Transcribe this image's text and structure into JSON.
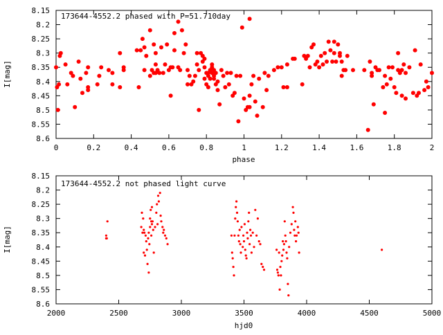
{
  "chart_data": [
    {
      "type": "scatter",
      "title": "173644-4552.2 phased with P=51.710day",
      "xlabel": "phase",
      "ylabel": "I[mag]",
      "xlim": [
        0,
        2
      ],
      "ylim": [
        8.6,
        8.15
      ],
      "y_inverted": true,
      "marker_color": "#ff0000",
      "marker": "filled-circle-large",
      "x_ticks": [
        "0",
        "0.2",
        "0.4",
        "0.6",
        "0.8",
        "1",
        "1.2",
        "1.4",
        "1.6",
        "1.8",
        "2"
      ],
      "y_ticks": [
        "8.15",
        "8.2",
        "8.25",
        "8.3",
        "8.35",
        "8.4",
        "8.45",
        "8.5",
        "8.55",
        "8.6"
      ],
      "x_tick_values": [
        0,
        0.2,
        0.4,
        0.6,
        0.8,
        1,
        1.2,
        1.4,
        1.6,
        1.8,
        2
      ],
      "y_tick_values": [
        8.15,
        8.2,
        8.25,
        8.3,
        8.35,
        8.4,
        8.45,
        8.5,
        8.55,
        8.6
      ],
      "points": [
        [
          0.0,
          8.35
        ],
        [
          0.005,
          8.42
        ],
        [
          0.01,
          8.5
        ],
        [
          0.015,
          8.41
        ],
        [
          0.02,
          8.31
        ],
        [
          0.025,
          8.3
        ],
        [
          0.05,
          8.34
        ],
        [
          0.06,
          8.41
        ],
        [
          0.08,
          8.37
        ],
        [
          0.09,
          8.38
        ],
        [
          0.1,
          8.49
        ],
        [
          0.12,
          8.33
        ],
        [
          0.13,
          8.39
        ],
        [
          0.14,
          8.44
        ],
        [
          0.16,
          8.37
        ],
        [
          0.17,
          8.42
        ],
        [
          0.17,
          8.43
        ],
        [
          0.17,
          8.35
        ],
        [
          0.22,
          8.41
        ],
        [
          0.23,
          8.38
        ],
        [
          0.24,
          8.35
        ],
        [
          0.28,
          8.36
        ],
        [
          0.3,
          8.37
        ],
        [
          0.3,
          8.41
        ],
        [
          0.34,
          8.42
        ],
        [
          0.34,
          8.3
        ],
        [
          0.36,
          8.36
        ],
        [
          0.36,
          8.35
        ],
        [
          0.43,
          8.29
        ],
        [
          0.44,
          8.42
        ],
        [
          0.45,
          8.29
        ],
        [
          0.46,
          8.25
        ],
        [
          0.47,
          8.28
        ],
        [
          0.47,
          8.36
        ],
        [
          0.48,
          8.31
        ],
        [
          0.5,
          8.22
        ],
        [
          0.5,
          8.38
        ],
        [
          0.51,
          8.36
        ],
        [
          0.52,
          8.37
        ],
        [
          0.52,
          8.27
        ],
        [
          0.53,
          8.3
        ],
        [
          0.53,
          8.37
        ],
        [
          0.53,
          8.34
        ],
        [
          0.54,
          8.36
        ],
        [
          0.55,
          8.37
        ],
        [
          0.56,
          8.28
        ],
        [
          0.57,
          8.37
        ],
        [
          0.58,
          8.34
        ],
        [
          0.59,
          8.27
        ],
        [
          0.6,
          8.36
        ],
        [
          0.61,
          8.35
        ],
        [
          0.61,
          8.45
        ],
        [
          0.62,
          8.35
        ],
        [
          0.63,
          8.23
        ],
        [
          0.63,
          8.29
        ],
        [
          0.65,
          8.35
        ],
        [
          0.65,
          8.19
        ],
        [
          0.66,
          8.36
        ],
        [
          0.67,
          8.22
        ],
        [
          0.68,
          8.3
        ],
        [
          0.69,
          8.27
        ],
        [
          0.7,
          8.41
        ],
        [
          0.7,
          8.36
        ],
        [
          0.71,
          8.38
        ],
        [
          0.72,
          8.41
        ],
        [
          0.73,
          8.4
        ],
        [
          0.74,
          8.38
        ],
        [
          0.75,
          8.3
        ],
        [
          0.75,
          8.34
        ],
        [
          0.76,
          8.36
        ],
        [
          0.76,
          8.5
        ],
        [
          0.77,
          8.3
        ],
        [
          0.78,
          8.31
        ],
        [
          0.78,
          8.33
        ],
        [
          0.79,
          8.32
        ],
        [
          0.79,
          8.35
        ],
        [
          0.79,
          8.39
        ],
        [
          0.8,
          8.37
        ],
        [
          0.8,
          8.41
        ],
        [
          0.81,
          8.38
        ],
        [
          0.81,
          8.42
        ],
        [
          0.81,
          8.37
        ],
        [
          0.82,
          8.36
        ],
        [
          0.82,
          8.39
        ],
        [
          0.83,
          8.35
        ],
        [
          0.83,
          8.37
        ],
        [
          0.83,
          8.34
        ],
        [
          0.84,
          8.38
        ],
        [
          0.84,
          8.36
        ],
        [
          0.84,
          8.39
        ],
        [
          0.85,
          8.37
        ],
        [
          0.85,
          8.41
        ],
        [
          0.86,
          8.4
        ],
        [
          0.86,
          8.43
        ],
        [
          0.87,
          8.48
        ],
        [
          0.88,
          8.36
        ],
        [
          0.89,
          8.38
        ],
        [
          0.9,
          8.42
        ],
        [
          0.91,
          8.37
        ],
        [
          0.92,
          8.41
        ],
        [
          0.93,
          8.37
        ],
        [
          0.94,
          8.45
        ],
        [
          0.95,
          8.44
        ],
        [
          0.96,
          8.38
        ],
        [
          0.97,
          8.54
        ],
        [
          0.98,
          8.38
        ],
        [
          0.99,
          8.21
        ],
        [
          1.0,
          8.46
        ],
        [
          1.01,
          8.5
        ],
        [
          1.02,
          8.49
        ],
        [
          1.03,
          8.18
        ],
        [
          1.03,
          8.45
        ],
        [
          1.03,
          8.49
        ],
        [
          1.04,
          8.41
        ],
        [
          1.05,
          8.38
        ],
        [
          1.06,
          8.47
        ],
        [
          1.07,
          8.52
        ],
        [
          1.08,
          8.39
        ],
        [
          1.1,
          8.49
        ],
        [
          1.11,
          8.37
        ],
        [
          1.12,
          8.43
        ],
        [
          1.13,
          8.38
        ],
        [
          1.16,
          8.36
        ],
        [
          1.18,
          8.35
        ],
        [
          1.2,
          8.35
        ],
        [
          1.21,
          8.42
        ],
        [
          1.23,
          8.42
        ],
        [
          1.23,
          8.34
        ],
        [
          1.26,
          8.32
        ],
        [
          1.27,
          8.32
        ],
        [
          1.31,
          8.41
        ],
        [
          1.32,
          8.31
        ],
        [
          1.33,
          8.32
        ],
        [
          1.34,
          8.31
        ],
        [
          1.35,
          8.35
        ],
        [
          1.36,
          8.28
        ],
        [
          1.37,
          8.27
        ],
        [
          1.38,
          8.34
        ],
        [
          1.39,
          8.33
        ],
        [
          1.4,
          8.35
        ],
        [
          1.41,
          8.31
        ],
        [
          1.42,
          8.34
        ],
        [
          1.43,
          8.3
        ],
        [
          1.44,
          8.33
        ],
        [
          1.45,
          8.26
        ],
        [
          1.46,
          8.29
        ],
        [
          1.47,
          8.33
        ],
        [
          1.48,
          8.3
        ],
        [
          1.48,
          8.26
        ],
        [
          1.49,
          8.33
        ],
        [
          1.5,
          8.27
        ],
        [
          1.51,
          8.31
        ],
        [
          1.51,
          8.3
        ],
        [
          1.52,
          8.33
        ],
        [
          1.52,
          8.38
        ],
        [
          1.53,
          8.36
        ],
        [
          1.54,
          8.36
        ],
        [
          1.55,
          8.31
        ],
        [
          1.58,
          8.36
        ],
        [
          1.64,
          8.36
        ],
        [
          1.66,
          8.57
        ],
        [
          1.67,
          8.33
        ],
        [
          1.68,
          8.37
        ],
        [
          1.68,
          8.38
        ],
        [
          1.69,
          8.48
        ],
        [
          1.7,
          8.35
        ],
        [
          1.71,
          8.36
        ],
        [
          1.72,
          8.36
        ],
        [
          1.74,
          8.42
        ],
        [
          1.75,
          8.51
        ],
        [
          1.75,
          8.38
        ],
        [
          1.76,
          8.41
        ],
        [
          1.77,
          8.35
        ],
        [
          1.78,
          8.39
        ],
        [
          1.79,
          8.35
        ],
        [
          1.8,
          8.42
        ],
        [
          1.81,
          8.44
        ],
        [
          1.82,
          8.3
        ],
        [
          1.82,
          8.36
        ],
        [
          1.83,
          8.37
        ],
        [
          1.84,
          8.45
        ],
        [
          1.84,
          8.36
        ],
        [
          1.85,
          8.34
        ],
        [
          1.86,
          8.37
        ],
        [
          1.86,
          8.46
        ],
        [
          1.88,
          8.35
        ],
        [
          1.9,
          8.44
        ],
        [
          1.91,
          8.29
        ],
        [
          1.92,
          8.45
        ],
        [
          1.93,
          8.44
        ],
        [
          1.94,
          8.34
        ],
        [
          1.96,
          8.43
        ],
        [
          1.97,
          8.4
        ],
        [
          1.98,
          8.42
        ],
        [
          2.0,
          8.37
        ]
      ]
    },
    {
      "type": "scatter",
      "title": "173644-4552.2 not phased light curve",
      "xlabel": "hjd0",
      "ylabel": "I[mag]",
      "xlim": [
        2000,
        5000
      ],
      "ylim": [
        8.6,
        8.15
      ],
      "y_inverted": true,
      "marker_color": "#ff0000",
      "marker": "dot-small",
      "x_ticks": [
        "2000",
        "2500",
        "3000",
        "3500",
        "4000",
        "4500",
        "5000"
      ],
      "y_ticks": [
        "8.15",
        "8.2",
        "8.25",
        "8.3",
        "8.35",
        "8.4",
        "8.45",
        "8.5",
        "8.55",
        "8.6"
      ],
      "x_tick_values": [
        2000,
        2500,
        3000,
        3500,
        4000,
        4500,
        5000
      ],
      "y_tick_values": [
        8.15,
        8.2,
        8.25,
        8.3,
        8.35,
        8.4,
        8.45,
        8.5,
        8.55,
        8.6
      ],
      "points": [
        [
          2400,
          8.37
        ],
        [
          2400,
          8.36
        ],
        [
          2405,
          8.37
        ],
        [
          2410,
          8.31
        ],
        [
          2680,
          8.33
        ],
        [
          2685,
          8.28
        ],
        [
          2690,
          8.35
        ],
        [
          2695,
          8.3
        ],
        [
          2700,
          8.34
        ],
        [
          2700,
          8.42
        ],
        [
          2705,
          8.35
        ],
        [
          2710,
          8.43
        ],
        [
          2715,
          8.36
        ],
        [
          2720,
          8.38
        ],
        [
          2725,
          8.41
        ],
        [
          2730,
          8.46
        ],
        [
          2735,
          8.37
        ],
        [
          2740,
          8.35
        ],
        [
          2740,
          8.49
        ],
        [
          2745,
          8.39
        ],
        [
          2750,
          8.3
        ],
        [
          2750,
          8.33
        ],
        [
          2755,
          8.27
        ],
        [
          2760,
          8.31
        ],
        [
          2760,
          8.36
        ],
        [
          2765,
          8.32
        ],
        [
          2765,
          8.26
        ],
        [
          2770,
          8.31
        ],
        [
          2775,
          8.34
        ],
        [
          2780,
          8.42
        ],
        [
          2790,
          8.33
        ],
        [
          2800,
          8.28
        ],
        [
          2805,
          8.25
        ],
        [
          2810,
          8.32
        ],
        [
          2815,
          8.22
        ],
        [
          2820,
          8.24
        ],
        [
          2830,
          8.21
        ],
        [
          2835,
          8.29
        ],
        [
          2840,
          8.31
        ],
        [
          2850,
          8.33
        ],
        [
          2855,
          8.35
        ],
        [
          2860,
          8.34
        ],
        [
          2870,
          8.36
        ],
        [
          2880,
          8.37
        ],
        [
          2890,
          8.39
        ],
        [
          3400,
          8.36
        ],
        [
          3405,
          8.42
        ],
        [
          3410,
          8.44
        ],
        [
          3415,
          8.47
        ],
        [
          3420,
          8.5
        ],
        [
          3425,
          8.36
        ],
        [
          3430,
          8.3
        ],
        [
          3435,
          8.26
        ],
        [
          3440,
          8.24
        ],
        [
          3445,
          8.28
        ],
        [
          3450,
          8.31
        ],
        [
          3455,
          8.36
        ],
        [
          3460,
          8.38
        ],
        [
          3465,
          8.34
        ],
        [
          3470,
          8.39
        ],
        [
          3475,
          8.42
        ],
        [
          3480,
          8.33
        ],
        [
          3490,
          8.4
        ],
        [
          3495,
          8.36
        ],
        [
          3500,
          8.38
        ],
        [
          3505,
          8.32
        ],
        [
          3510,
          8.41
        ],
        [
          3515,
          8.43
        ],
        [
          3520,
          8.44
        ],
        [
          3525,
          8.35
        ],
        [
          3530,
          8.37
        ],
        [
          3535,
          8.31
        ],
        [
          3540,
          8.28
        ],
        [
          3545,
          8.39
        ],
        [
          3550,
          8.34
        ],
        [
          3555,
          8.36
        ],
        [
          3560,
          8.42
        ],
        [
          3570,
          8.35
        ],
        [
          3580,
          8.4
        ],
        [
          3590,
          8.27
        ],
        [
          3600,
          8.36
        ],
        [
          3610,
          8.3
        ],
        [
          3620,
          8.38
        ],
        [
          3630,
          8.39
        ],
        [
          3640,
          8.46
        ],
        [
          3650,
          8.47
        ],
        [
          3660,
          8.48
        ],
        [
          3760,
          8.41
        ],
        [
          3765,
          8.48
        ],
        [
          3770,
          8.49
        ],
        [
          3775,
          8.5
        ],
        [
          3780,
          8.42
        ],
        [
          3785,
          8.55
        ],
        [
          3790,
          8.47
        ],
        [
          3795,
          8.5
        ],
        [
          3800,
          8.45
        ],
        [
          3805,
          8.43
        ],
        [
          3810,
          8.38
        ],
        [
          3815,
          8.41
        ],
        [
          3820,
          8.39
        ],
        [
          3825,
          8.31
        ],
        [
          3830,
          8.36
        ],
        [
          3835,
          8.38
        ],
        [
          3840,
          8.42
        ],
        [
          3845,
          8.44
        ],
        [
          3850,
          8.53
        ],
        [
          3855,
          8.57
        ],
        [
          3860,
          8.4
        ],
        [
          3870,
          8.35
        ],
        [
          3880,
          8.32
        ],
        [
          3890,
          8.26
        ],
        [
          3895,
          8.28
        ],
        [
          3900,
          8.34
        ],
        [
          3905,
          8.36
        ],
        [
          3910,
          8.31
        ],
        [
          3915,
          8.38
        ],
        [
          3920,
          8.36
        ],
        [
          3930,
          8.33
        ],
        [
          3935,
          8.35
        ],
        [
          3940,
          8.42
        ],
        [
          4600,
          8.41
        ]
      ]
    }
  ]
}
